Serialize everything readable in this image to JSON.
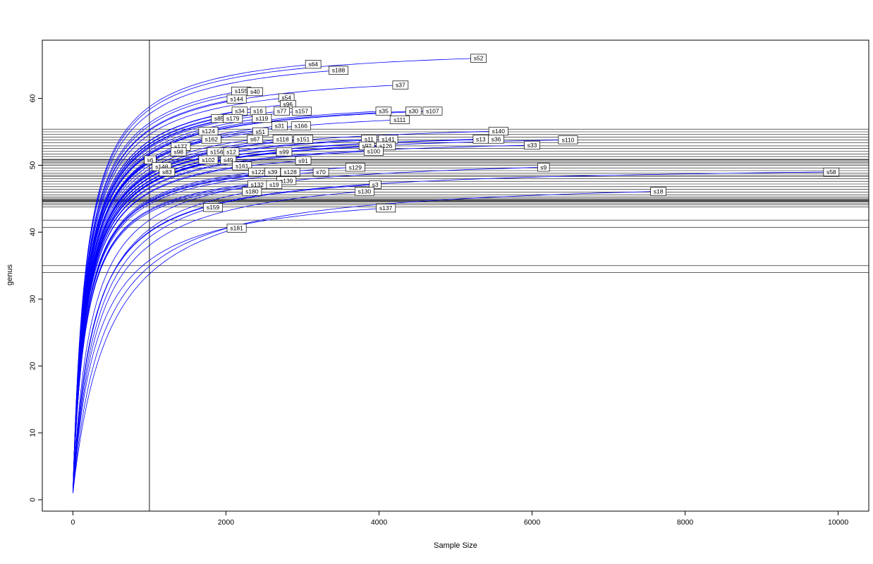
{
  "chart_data": {
    "type": "line",
    "title": "",
    "xlabel": "Sample Size",
    "ylabel": "genus",
    "xlim": [
      -400,
      10400
    ],
    "ylim": [
      -1.7,
      68.7
    ],
    "x_ticks": [
      0,
      2000,
      4000,
      6000,
      8000,
      10000
    ],
    "y_ticks": [
      0,
      10,
      20,
      30,
      40,
      50,
      60
    ],
    "grid": false,
    "legend": "none",
    "curve_color": "#0000ff",
    "line_color": "#000000",
    "label_box_fill": "#ffffff",
    "vline_x": 1000,
    "hlines": [
      55.4,
      55.0,
      54.6,
      54.2,
      53.8,
      53.4,
      52.9,
      52.5,
      52.1,
      51.7,
      51.3,
      50.9,
      50.8,
      50.6,
      50.4,
      50.2,
      50.0,
      49.6,
      49.2,
      48.8,
      48.5,
      48.3,
      48.0,
      47.6,
      47.2,
      46.8,
      46.4,
      46.0,
      45.6,
      45.3,
      45.1,
      44.9,
      44.8,
      44.7,
      44.6,
      44.5,
      44.3,
      44.1,
      43.8,
      41.8,
      40.7,
      35.0,
      34.0
    ],
    "series": [
      {
        "name": "s52",
        "x": 5300,
        "y": 66.0
      },
      {
        "name": "s64",
        "x": 3140,
        "y": 65.1
      },
      {
        "name": "s188",
        "x": 3470,
        "y": 64.2
      },
      {
        "name": "s37",
        "x": 4280,
        "y": 62.0
      },
      {
        "name": "s155",
        "x": 2200,
        "y": 61.1
      },
      {
        "name": "s40",
        "x": 2380,
        "y": 61.0
      },
      {
        "name": "s144",
        "x": 2140,
        "y": 59.9
      },
      {
        "name": "s54",
        "x": 2790,
        "y": 60.1
      },
      {
        "name": "s96",
        "x": 2810,
        "y": 59.1
      },
      {
        "name": "s34",
        "x": 2180,
        "y": 58.1
      },
      {
        "name": "s16",
        "x": 2420,
        "y": 58.1
      },
      {
        "name": "s77",
        "x": 2730,
        "y": 58.1
      },
      {
        "name": "s157",
        "x": 2990,
        "y": 58.1
      },
      {
        "name": "s35",
        "x": 4060,
        "y": 58.1
      },
      {
        "name": "s30",
        "x": 4450,
        "y": 58.1
      },
      {
        "name": "s107",
        "x": 4700,
        "y": 58.1
      },
      {
        "name": "s85",
        "x": 1910,
        "y": 57.0
      },
      {
        "name": "s179",
        "x": 2090,
        "y": 57.0
      },
      {
        "name": "s119",
        "x": 2470,
        "y": 57.0
      },
      {
        "name": "s111",
        "x": 4270,
        "y": 56.8
      },
      {
        "name": "s31",
        "x": 2700,
        "y": 55.9
      },
      {
        "name": "s166",
        "x": 2980,
        "y": 55.9
      },
      {
        "name": "s124",
        "x": 1770,
        "y": 55.1
      },
      {
        "name": "s51",
        "x": 2450,
        "y": 55.0
      },
      {
        "name": "s140",
        "x": 5560,
        "y": 55.1
      },
      {
        "name": "s162",
        "x": 1810,
        "y": 53.9
      },
      {
        "name": "s67",
        "x": 2380,
        "y": 53.9
      },
      {
        "name": "s118",
        "x": 2740,
        "y": 53.9
      },
      {
        "name": "s151",
        "x": 3010,
        "y": 53.9
      },
      {
        "name": "s11",
        "x": 3870,
        "y": 53.9
      },
      {
        "name": "s141",
        "x": 4120,
        "y": 53.9
      },
      {
        "name": "s13",
        "x": 5330,
        "y": 53.9
      },
      {
        "name": "s36",
        "x": 5530,
        "y": 53.9
      },
      {
        "name": "s33",
        "x": 6000,
        "y": 53.0
      },
      {
        "name": "s110",
        "x": 6470,
        "y": 53.8
      },
      {
        "name": "s177",
        "x": 1410,
        "y": 52.8
      },
      {
        "name": "s92",
        "x": 3840,
        "y": 52.9
      },
      {
        "name": "s126",
        "x": 4090,
        "y": 52.9
      },
      {
        "name": "s98",
        "x": 1380,
        "y": 52.0
      },
      {
        "name": "s156",
        "x": 1880,
        "y": 52.0
      },
      {
        "name": "s12",
        "x": 2070,
        "y": 52.0
      },
      {
        "name": "s99",
        "x": 2760,
        "y": 52.0
      },
      {
        "name": "s100",
        "x": 3930,
        "y": 52.1
      },
      {
        "name": "s6",
        "x": 1010,
        "y": 50.8
      },
      {
        "name": "s102",
        "x": 1770,
        "y": 50.8
      },
      {
        "name": "s49",
        "x": 2030,
        "y": 50.8
      },
      {
        "name": "s91",
        "x": 3010,
        "y": 50.7
      },
      {
        "name": "s148",
        "x": 1160,
        "y": 49.8
      },
      {
        "name": "s161",
        "x": 2210,
        "y": 49.9
      },
      {
        "name": "s129",
        "x": 3690,
        "y": 49.7
      },
      {
        "name": "s9",
        "x": 6150,
        "y": 49.7,
        "b": 240
      },
      {
        "name": "s83",
        "x": 1230,
        "y": 49.0
      },
      {
        "name": "s122",
        "x": 2420,
        "y": 49.0
      },
      {
        "name": "s39",
        "x": 2610,
        "y": 49.0
      },
      {
        "name": "s128",
        "x": 2840,
        "y": 49.0
      },
      {
        "name": "s70",
        "x": 3240,
        "y": 49.0
      },
      {
        "name": "s58",
        "x": 9910,
        "y": 49.0,
        "b": 260
      },
      {
        "name": "s139",
        "x": 2790,
        "y": 47.7
      },
      {
        "name": "s132",
        "x": 2410,
        "y": 47.1
      },
      {
        "name": "s19",
        "x": 2630,
        "y": 47.1
      },
      {
        "name": "s3",
        "x": 3950,
        "y": 47.1,
        "b": 260
      },
      {
        "name": "s130",
        "x": 3810,
        "y": 46.1,
        "b": 320
      },
      {
        "name": "s18",
        "x": 7650,
        "y": 46.1,
        "b": 400
      },
      {
        "name": "s180",
        "x": 2340,
        "y": 46.1,
        "b": 280
      },
      {
        "name": "s159",
        "x": 1830,
        "y": 43.7,
        "b": 300
      },
      {
        "name": "s137",
        "x": 4090,
        "y": 43.6,
        "b": 320
      },
      {
        "name": "s181",
        "x": 2140,
        "y": 40.6,
        "b": 480
      }
    ]
  }
}
